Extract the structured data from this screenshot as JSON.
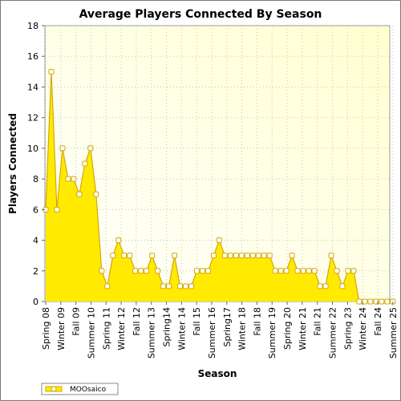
{
  "chart_data": {
    "type": "area",
    "title": "Average Players Connected By Season",
    "xlabel": "Season",
    "ylabel": "Players Connected",
    "ylim": [
      0,
      18
    ],
    "yticks": [
      0,
      2,
      4,
      6,
      8,
      10,
      12,
      14,
      16,
      18
    ],
    "grid": true,
    "legend_position": "bottom-left",
    "x_tick_labels": [
      "Spring 08",
      "Winter 09",
      "Fall 09",
      "Summer 10",
      "Spring 11",
      "Winter 12",
      "Fall 12",
      "Summer 13",
      "Spring14",
      "Winter 14",
      "Fall 15",
      "Summer 16",
      "Spring17",
      "Winter 18",
      "Fall 18",
      "Summer 19",
      "Spring 20",
      "Winter 21",
      "Fall 21",
      "Summer 22",
      "Spring 23",
      "Winter 24",
      "Fall 24",
      "Summer 25"
    ],
    "series": [
      {
        "name": "MOOsaico",
        "color": "#ffea00",
        "line_color": "#d4a800",
        "values": [
          6,
          15,
          6,
          10,
          8,
          8,
          7,
          9,
          10,
          7,
          2,
          1,
          3,
          4,
          3,
          3,
          2,
          2,
          2,
          3,
          2,
          1,
          1,
          3,
          1,
          1,
          1,
          2,
          2,
          2,
          3,
          4,
          3,
          3,
          3,
          3,
          3,
          3,
          3,
          3,
          3,
          2,
          2,
          2,
          3,
          2,
          2,
          2,
          2,
          1,
          1,
          3,
          2,
          1,
          2,
          2,
          0,
          0,
          0,
          0,
          0,
          0,
          0
        ]
      }
    ]
  }
}
